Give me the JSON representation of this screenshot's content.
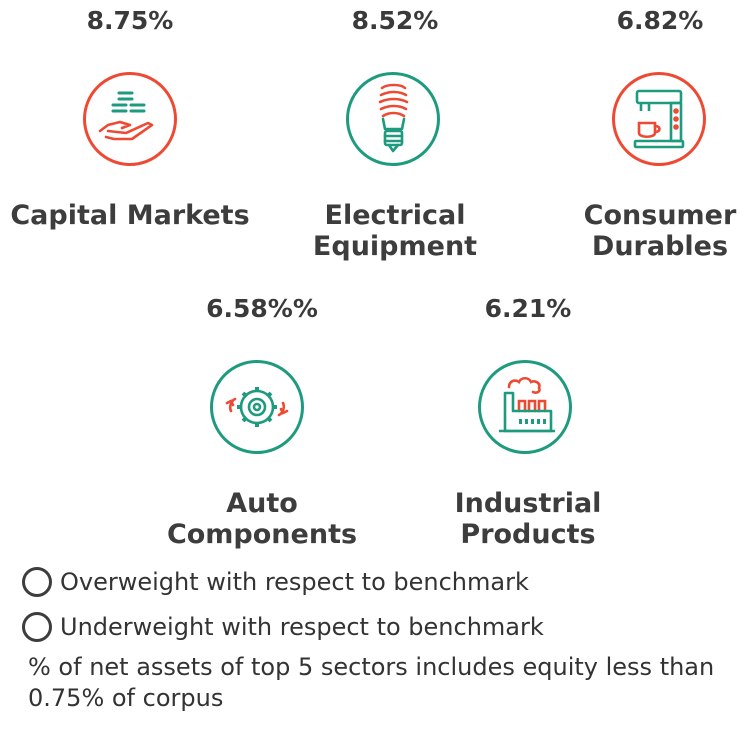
{
  "sectors": [
    {
      "pct": "8.75%",
      "name": "Capital Markets",
      "icon": "hand-coins-icon",
      "status": "underweight"
    },
    {
      "pct": "8.52%",
      "name": "Electrical\nEquipment",
      "icon": "lightbulb-icon",
      "status": "overweight"
    },
    {
      "pct": "6.82%",
      "name": "Consumer\nDurables",
      "icon": "coffee-machine-icon",
      "status": "underweight"
    },
    {
      "pct": "6.58%%",
      "name": "Auto\nComponents",
      "icon": "gears-icon",
      "status": "overweight"
    },
    {
      "pct": "6.21%",
      "name": "Industrial\nProducts",
      "icon": "factory-icon",
      "status": "overweight"
    }
  ],
  "legend": {
    "overweight": "Overweight with respect to benchmark",
    "underweight": "Underweight with respect to benchmark"
  },
  "note": "% of net assets of top 5 sectors includes equity less than 0.75% of corpus",
  "colors": {
    "overweight": "#1e9a7f",
    "underweight": "#ee4a33",
    "text": "#3d3d3d"
  }
}
